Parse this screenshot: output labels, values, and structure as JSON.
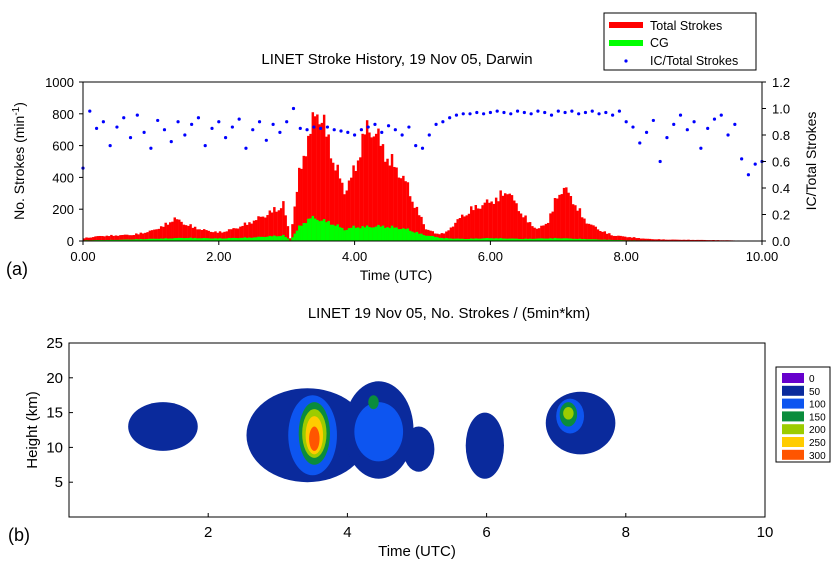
{
  "chart_data": [
    {
      "panel_label": "(a)",
      "type": "bar",
      "title": "LINET Stroke History, 19 Nov 05, Darwin",
      "xlabel": "Time (UTC)",
      "ylabel": "No. Strokes (min",
      "ylabel_sup": "-1",
      "ylabel_close": ")",
      "y2label": "IC/Total Strokes",
      "xlim": [
        0,
        10
      ],
      "ylim": [
        0,
        1000
      ],
      "y2lim": [
        0,
        1.2
      ],
      "xticks": [
        "0.00",
        "2.00",
        "4.00",
        "6.00",
        "8.00",
        "10.00"
      ],
      "xtick_values": [
        0,
        2,
        4,
        6,
        8,
        10
      ],
      "yticks": [
        "0",
        "200",
        "400",
        "600",
        "800",
        "1000"
      ],
      "ytick_values": [
        0,
        200,
        400,
        600,
        800,
        1000
      ],
      "y2ticks": [
        "0.0",
        "0.2",
        "0.4",
        "0.6",
        "0.8",
        "1.0",
        "1.2"
      ],
      "y2tick_values": [
        0,
        0.2,
        0.4,
        0.6,
        0.8,
        1.0,
        1.2
      ],
      "legend_position": "top-right",
      "series": [
        {
          "name": "Total Strokes",
          "kind": "bar",
          "color": "#ff0000",
          "x": [
            0.0,
            0.25,
            0.5,
            0.75,
            1.0,
            1.2,
            1.35,
            1.5,
            1.75,
            2.0,
            2.25,
            2.5,
            2.75,
            2.95,
            3.05,
            3.2,
            3.35,
            3.45,
            3.55,
            3.7,
            3.85,
            4.0,
            4.15,
            4.3,
            4.45,
            4.6,
            4.75,
            4.9,
            5.05,
            5.2,
            5.35,
            5.5,
            5.7,
            5.9,
            6.1,
            6.25,
            6.4,
            6.55,
            6.7,
            6.85,
            7.0,
            7.1,
            7.25,
            7.4,
            7.6,
            7.8,
            8.0,
            8.3,
            8.6,
            9.0,
            9.5,
            10.0
          ],
          "values": [
            20,
            35,
            40,
            45,
            70,
            110,
            160,
            120,
            80,
            60,
            90,
            140,
            200,
            260,
            20,
            520,
            780,
            930,
            820,
            560,
            350,
            500,
            780,
            780,
            620,
            520,
            420,
            240,
            90,
            50,
            60,
            140,
            220,
            260,
            300,
            360,
            240,
            140,
            80,
            140,
            340,
            370,
            260,
            140,
            80,
            40,
            30,
            15,
            10,
            8,
            5,
            0
          ]
        },
        {
          "name": "CG",
          "kind": "bar",
          "color": "#00ff00",
          "x": [
            0.0,
            0.5,
            1.0,
            1.5,
            2.0,
            2.5,
            2.95,
            3.05,
            3.2,
            3.35,
            3.5,
            3.7,
            3.85,
            4.0,
            4.2,
            4.4,
            4.6,
            4.8,
            5.0,
            5.3,
            5.6,
            6.0,
            6.5,
            7.0,
            7.5,
            8.0,
            8.5,
            9.0,
            10.0
          ],
          "values": [
            5,
            8,
            15,
            22,
            18,
            25,
            40,
            5,
            110,
            165,
            150,
            120,
            80,
            100,
            100,
            105,
            95,
            80,
            45,
            20,
            15,
            20,
            15,
            20,
            12,
            5,
            3,
            2,
            0
          ]
        },
        {
          "name": "IC/Total Strokes",
          "kind": "scatter",
          "color": "#0000ff",
          "x": [
            0.0,
            0.1,
            0.2,
            0.3,
            0.4,
            0.5,
            0.6,
            0.7,
            0.8,
            0.9,
            1.0,
            1.1,
            1.2,
            1.3,
            1.4,
            1.5,
            1.6,
            1.7,
            1.8,
            1.9,
            2.0,
            2.1,
            2.2,
            2.3,
            2.4,
            2.5,
            2.6,
            2.7,
            2.8,
            2.9,
            3.0,
            3.1,
            3.2,
            3.3,
            3.4,
            3.5,
            3.6,
            3.7,
            3.8,
            3.9,
            4.0,
            4.1,
            4.2,
            4.3,
            4.4,
            4.5,
            4.6,
            4.7,
            4.8,
            4.9,
            5.0,
            5.1,
            5.2,
            5.3,
            5.4,
            5.5,
            5.6,
            5.7,
            5.8,
            5.9,
            6.0,
            6.1,
            6.2,
            6.3,
            6.4,
            6.5,
            6.6,
            6.7,
            6.8,
            6.9,
            7.0,
            7.1,
            7.2,
            7.3,
            7.4,
            7.5,
            7.6,
            7.7,
            7.8,
            7.9,
            8.0,
            8.1,
            8.2,
            8.3,
            8.4,
            8.5,
            8.6,
            8.7,
            8.8,
            8.9,
            9.0,
            9.1,
            9.2,
            9.3,
            9.4,
            9.5,
            9.6,
            9.7,
            9.8,
            9.9,
            10.0
          ],
          "values": [
            0.55,
            0.98,
            0.85,
            0.9,
            0.72,
            0.86,
            0.93,
            0.78,
            0.95,
            0.82,
            0.7,
            0.91,
            0.84,
            0.75,
            0.9,
            0.8,
            0.88,
            0.93,
            0.72,
            0.85,
            0.9,
            0.78,
            0.86,
            0.92,
            0.7,
            0.84,
            0.9,
            0.76,
            0.88,
            0.82,
            0.9,
            1.0,
            0.85,
            0.84,
            0.86,
            0.85,
            0.86,
            0.84,
            0.83,
            0.82,
            0.8,
            0.84,
            0.86,
            0.88,
            0.82,
            0.87,
            0.84,
            0.8,
            0.86,
            0.72,
            0.7,
            0.8,
            0.88,
            0.9,
            0.93,
            0.95,
            0.96,
            0.96,
            0.97,
            0.96,
            0.97,
            0.98,
            0.97,
            0.96,
            0.98,
            0.97,
            0.96,
            0.98,
            0.97,
            0.95,
            0.98,
            0.97,
            0.98,
            0.96,
            0.97,
            0.98,
            0.96,
            0.97,
            0.95,
            0.98,
            0.9,
            0.86,
            0.74,
            0.82,
            0.91,
            0.6,
            0.78,
            0.88,
            0.95,
            0.84,
            0.9,
            0.7,
            0.85,
            0.92,
            0.95,
            0.8,
            0.88,
            0.62,
            0.5,
            0.58,
            0.6
          ]
        }
      ]
    },
    {
      "panel_label": "(b)",
      "type": "heatmap",
      "title": "LINET 19 Nov 05, No. Strokes / (5min*km)",
      "xlabel": "Time (UTC)",
      "ylabel": "Height (km)",
      "xlim": [
        0,
        10
      ],
      "ylim": [
        0,
        25
      ],
      "xticks": [
        "2",
        "4",
        "6",
        "8",
        "10"
      ],
      "xtick_values": [
        2,
        4,
        6,
        8,
        10
      ],
      "yticks": [
        "5",
        "10",
        "15",
        "20",
        "25"
      ],
      "ytick_values": [
        5,
        10,
        15,
        20,
        25
      ],
      "legend_position": "right",
      "levels": [
        {
          "label": "0",
          "value": 0,
          "color": "#6600cc"
        },
        {
          "label": "50",
          "value": 50,
          "color": "#0a2a9c"
        },
        {
          "label": "100",
          "value": 100,
          "color": "#0d55f0"
        },
        {
          "label": "150",
          "value": 150,
          "color": "#0a8c3c"
        },
        {
          "label": "200",
          "value": 200,
          "color": "#9ccc00"
        },
        {
          "label": "250",
          "value": 250,
          "color": "#ffcc00"
        },
        {
          "label": "300",
          "value": 300,
          "color": "#ff5500"
        }
      ],
      "cells": [
        {
          "x_range": [
            0.85,
            1.85
          ],
          "y_range": [
            9.5,
            16.5
          ],
          "level": 50
        },
        {
          "x_range": [
            2.55,
            4.3
          ],
          "y_range": [
            5.0,
            18.5
          ],
          "level": 50
        },
        {
          "x_range": [
            3.95,
            4.95
          ],
          "y_range": [
            5.5,
            19.5
          ],
          "level": 50
        },
        {
          "x_range": [
            4.8,
            5.25
          ],
          "y_range": [
            6.5,
            13.0
          ],
          "level": 50
        },
        {
          "x_range": [
            5.7,
            6.25
          ],
          "y_range": [
            5.5,
            15.0
          ],
          "level": 50
        },
        {
          "x_range": [
            6.85,
            7.85
          ],
          "y_range": [
            9.0,
            18.0
          ],
          "level": 50
        },
        {
          "x_range": [
            3.15,
            3.85
          ],
          "y_range": [
            6.0,
            17.5
          ],
          "level": 100
        },
        {
          "x_range": [
            4.1,
            4.8
          ],
          "y_range": [
            8.0,
            16.5
          ],
          "level": 100
        },
        {
          "x_range": [
            7.0,
            7.4
          ],
          "y_range": [
            12.0,
            17.0
          ],
          "level": 100
        },
        {
          "x_range": [
            3.3,
            3.75
          ],
          "y_range": [
            7.5,
            16.5
          ],
          "level": 150
        },
        {
          "x_range": [
            4.3,
            4.45
          ],
          "y_range": [
            15.5,
            17.5
          ],
          "level": 150
        },
        {
          "x_range": [
            7.05,
            7.3
          ],
          "y_range": [
            13.0,
            16.5
          ],
          "level": 150
        },
        {
          "x_range": [
            3.35,
            3.7
          ],
          "y_range": [
            8.5,
            15.5
          ],
          "level": 200
        },
        {
          "x_range": [
            7.1,
            7.25
          ],
          "y_range": [
            14.0,
            15.8
          ],
          "level": 200
        },
        {
          "x_range": [
            3.4,
            3.65
          ],
          "y_range": [
            9.0,
            14.5
          ],
          "level": 250
        },
        {
          "x_range": [
            3.45,
            3.6
          ],
          "y_range": [
            9.5,
            13.0
          ],
          "level": 300
        }
      ]
    }
  ]
}
